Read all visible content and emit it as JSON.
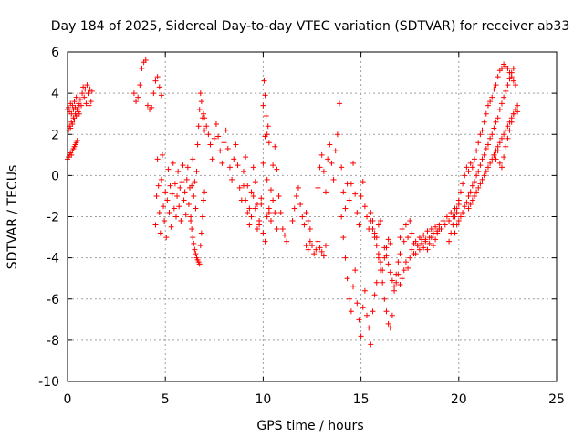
{
  "chart_data": {
    "type": "scatter",
    "title": "Day 184 of 2025, Sidereal Day-to-day VTEC variation (SDTVAR) for receiver ab33",
    "xlabel": "GPS time / hours",
    "ylabel": "SDTVAR / TECUs",
    "xlim": [
      0,
      25
    ],
    "ylim": [
      -10,
      6
    ],
    "xticks": [
      0,
      5,
      10,
      15,
      20,
      25
    ],
    "yticks": [
      -10,
      -8,
      -6,
      -4,
      -2,
      0,
      2,
      4,
      6
    ],
    "grid": true,
    "marker": "+",
    "color": "#ff0000",
    "series": [
      {
        "name": "SDTVAR",
        "x": [
          0.0,
          0.05,
          0.1,
          0.15,
          0.2,
          0.25,
          0.3,
          0.35,
          0.4,
          0.45,
          0.5,
          0.55,
          0.6,
          0.65,
          0.7,
          0.75,
          0.8,
          0.85,
          0.9,
          0.95,
          1.0,
          1.05,
          1.1,
          1.15,
          1.2,
          1.25,
          0.05,
          0.1,
          0.15,
          0.2,
          0.25,
          0.3,
          0.35,
          0.4,
          0.45,
          0.5,
          0.55,
          0.6,
          0.0,
          0.05,
          0.1,
          0.15,
          0.2,
          0.25,
          0.3,
          0.35,
          0.4,
          0.45,
          0.5,
          3.4,
          3.5,
          3.6,
          3.7,
          3.8,
          3.9,
          4.0,
          4.1,
          4.2,
          4.3,
          4.4,
          4.5,
          4.6,
          4.7,
          4.8,
          4.5,
          4.55,
          4.6,
          4.65,
          4.7,
          4.75,
          4.8,
          4.85,
          4.9,
          4.95,
          5.0,
          5.05,
          5.1,
          5.15,
          5.2,
          5.25,
          5.3,
          5.35,
          5.4,
          5.45,
          5.5,
          5.55,
          5.6,
          5.65,
          5.7,
          5.75,
          5.8,
          5.85,
          5.9,
          5.95,
          6.0,
          6.05,
          6.1,
          6.15,
          6.2,
          6.25,
          6.3,
          6.35,
          6.4,
          6.45,
          6.5,
          6.55,
          6.6,
          6.65,
          6.7,
          6.75,
          6.8,
          6.85,
          6.9,
          6.95,
          7.0,
          6.3,
          6.35,
          6.4,
          6.45,
          6.5,
          6.55,
          6.6,
          6.65,
          6.7,
          6.75,
          6.8,
          6.85,
          6.9,
          6.95,
          7.0,
          7.0,
          7.1,
          7.2,
          7.3,
          7.4,
          7.5,
          7.6,
          7.7,
          7.8,
          7.9,
          8.0,
          8.1,
          8.2,
          8.3,
          8.4,
          8.5,
          8.6,
          8.7,
          8.8,
          8.9,
          9.0,
          9.1,
          9.2,
          9.3,
          9.4,
          9.5,
          9.6,
          9.7,
          9.8,
          9.9,
          10.0,
          10.1,
          10.2,
          10.3,
          10.4,
          10.5,
          10.6,
          10.7,
          10.8,
          10.9,
          11.0,
          11.1,
          11.2,
          9.0,
          9.1,
          9.2,
          9.3,
          9.4,
          9.5,
          9.6,
          9.7,
          9.8,
          9.9,
          10.0,
          10.1,
          10.2,
          10.3,
          10.4,
          10.5,
          10.6,
          10.7,
          10.0,
          10.05,
          10.1,
          10.15,
          10.2,
          10.25,
          10.3,
          11.5,
          11.6,
          11.7,
          11.8,
          11.9,
          12.0,
          12.1,
          12.2,
          12.3,
          12.4,
          12.5,
          12.6,
          12.7,
          12.8,
          12.9,
          13.0,
          13.1,
          13.2,
          12.2,
          12.3,
          12.4,
          12.8,
          12.9,
          13.0,
          13.1,
          13.2,
          13.3,
          13.4,
          13.5,
          13.6,
          13.7,
          13.8,
          13.9,
          14.0,
          14.1,
          14.2,
          14.3,
          14.4,
          14.5,
          14.6,
          14.7,
          14.8,
          14.9,
          15.0,
          15.1,
          15.2,
          15.3,
          15.4,
          15.5,
          15.6,
          15.7,
          15.8,
          15.9,
          16.0,
          14.0,
          14.1,
          14.2,
          14.3,
          14.4,
          14.5,
          14.6,
          14.7,
          14.8,
          14.9,
          15.0,
          15.1,
          15.2,
          15.3,
          15.4,
          15.5,
          15.6,
          15.7,
          15.8,
          15.9,
          16.0,
          16.1,
          16.2,
          16.3,
          16.4,
          16.5,
          16.6,
          16.7,
          16.8,
          16.9,
          17.0,
          15.5,
          15.6,
          15.7,
          15.8,
          15.9,
          16.0,
          16.1,
          16.2,
          16.3,
          16.4,
          16.5,
          16.2,
          16.3,
          16.4,
          16.5,
          16.6,
          16.7,
          16.8,
          16.9,
          17.0,
          17.1,
          17.2,
          17.3,
          17.4,
          17.5,
          17.6,
          17.7,
          17.8,
          17.9,
          18.0,
          18.1,
          18.2,
          18.3,
          18.4,
          18.5,
          18.6,
          18.7,
          18.8,
          18.9,
          19.0,
          19.1,
          19.2,
          19.3,
          19.4,
          19.5,
          19.6,
          19.7,
          19.8,
          19.9,
          20.0,
          17.0,
          17.1,
          17.2,
          17.3,
          17.4,
          17.5,
          17.6,
          17.7,
          17.8,
          17.9,
          18.0,
          18.1,
          18.2,
          18.3,
          18.4,
          18.5,
          18.6,
          18.7,
          18.8,
          18.9,
          19.0,
          19.5,
          19.6,
          19.7,
          19.8,
          19.9,
          20.0,
          20.1,
          20.2,
          20.3,
          20.4,
          20.5,
          20.6,
          20.7,
          20.8,
          20.9,
          21.0,
          21.1,
          21.2,
          21.3,
          21.4,
          21.5,
          21.6,
          21.7,
          21.8,
          21.9,
          22.0,
          22.1,
          22.2,
          22.3,
          22.4,
          22.5,
          22.6,
          22.7,
          22.8,
          22.9,
          19.8,
          19.9,
          20.0,
          20.1,
          20.2,
          20.3,
          20.4,
          20.5,
          20.6,
          20.7,
          20.8,
          20.9,
          21.0,
          21.1,
          21.2,
          21.3,
          21.4,
          21.5,
          21.6,
          21.7,
          21.8,
          21.9,
          22.0,
          22.1,
          22.2,
          22.3,
          22.4,
          22.5,
          22.6,
          22.7,
          22.8,
          21.8,
          21.9,
          22.0,
          22.1,
          22.2,
          22.3,
          22.4,
          22.5,
          22.6,
          22.7,
          22.8,
          22.9,
          23.0,
          20.5,
          20.6,
          20.7,
          20.8,
          20.9,
          21.0,
          21.1,
          21.2,
          21.3,
          21.4,
          21.5,
          21.6,
          21.7,
          21.8,
          21.9,
          22.0,
          22.1,
          22.2,
          22.3,
          22.4,
          22.5,
          22.6,
          22.7,
          22.8,
          22.9,
          23.0
        ],
        "y": [
          3.2,
          3.3,
          3.1,
          3.5,
          3.0,
          3.4,
          3.2,
          3.6,
          3.3,
          3.8,
          3.2,
          3.5,
          3.0,
          3.7,
          3.4,
          4.0,
          4.3,
          3.8,
          4.2,
          3.5,
          4.4,
          4.0,
          3.4,
          4.2,
          3.6,
          4.1,
          2.2,
          2.4,
          2.3,
          2.6,
          2.5,
          2.8,
          2.7,
          3.0,
          2.9,
          3.2,
          3.1,
          3.4,
          0.8,
          0.9,
          1.0,
          1.1,
          1.0,
          1.2,
          1.3,
          1.4,
          1.5,
          1.6,
          1.7,
          4.0,
          3.6,
          3.8,
          4.4,
          5.2,
          5.5,
          5.6,
          3.4,
          3.2,
          3.3,
          4.0,
          4.6,
          4.8,
          4.3,
          3.9,
          -2.4,
          -1.0,
          0.8,
          -0.5,
          -1.8,
          -2.8,
          -0.2,
          1.0,
          -1.5,
          -2.2,
          -0.8,
          -3.0,
          -1.2,
          0.3,
          -1.8,
          -0.5,
          -2.5,
          -0.9,
          0.6,
          -1.6,
          -0.4,
          -2.0,
          -1.0,
          0.2,
          -1.5,
          -0.6,
          -2.2,
          -0.3,
          0.5,
          -1.2,
          -0.8,
          -1.9,
          -0.2,
          0.4,
          -1.4,
          -0.6,
          -2.0,
          -0.5,
          0.8,
          -1.0,
          -0.3,
          -1.6,
          0.2,
          1.5,
          2.4,
          3.2,
          4.0,
          3.6,
          2.8,
          3.0,
          2.2,
          -2.2,
          -2.6,
          -3.0,
          -3.3,
          -3.6,
          -3.8,
          -4.0,
          -4.1,
          -4.2,
          -4.3,
          -3.4,
          -2.8,
          -2.0,
          -1.2,
          -0.8,
          2.8,
          2.4,
          2.0,
          1.5,
          0.8,
          1.8,
          2.5,
          1.9,
          1.2,
          0.6,
          1.6,
          2.2,
          1.3,
          0.4,
          -0.2,
          0.8,
          1.5,
          0.5,
          -0.6,
          -1.2,
          0.2,
          0.9,
          -0.5,
          -1.6,
          -0.8,
          0.4,
          -0.3,
          -1.4,
          -2.4,
          -1.1,
          0.6,
          1.9,
          -0.2,
          -1.8,
          -0.7,
          0.5,
          1.4,
          0.3,
          -1.0,
          -1.8,
          -2.6,
          -2.9,
          -3.2,
          -0.5,
          -1.2,
          -1.8,
          -2.4,
          -2.0,
          -1.0,
          -1.6,
          -2.6,
          -2.2,
          -1.4,
          -2.8,
          -3.2,
          -2.0,
          -1.6,
          -2.2,
          -1.2,
          -1.8,
          -2.6,
          3.4,
          4.6,
          3.9,
          2.9,
          2.0,
          2.4,
          1.6,
          -2.2,
          -1.6,
          -1.0,
          -0.6,
          -1.4,
          -2.0,
          -2.4,
          -1.8,
          -2.2,
          -2.6,
          -3.4,
          -3.8,
          -3.6,
          -3.2,
          -3.5,
          -3.7,
          -3.9,
          -3.4,
          -3.4,
          -3.6,
          -3.2,
          -0.6,
          0.4,
          1.0,
          0.2,
          -0.8,
          0.8,
          1.5,
          0.6,
          -0.2,
          1.2,
          2.0,
          3.5,
          0.4,
          -0.8,
          -1.6,
          -0.4,
          -1.2,
          -0.4,
          0.6,
          -0.9,
          -1.8,
          -2.4,
          -1.0,
          -0.3,
          -1.5,
          -2.0,
          -2.6,
          -1.8,
          -2.2,
          -2.8,
          -3.0,
          -2.4,
          -2.2,
          -2.0,
          -3.0,
          -4.0,
          -5.0,
          -6.0,
          -6.6,
          -5.4,
          -4.6,
          -6.2,
          -7.0,
          -7.8,
          -6.4,
          -5.6,
          -6.8,
          -7.4,
          -8.2,
          -6.6,
          -5.8,
          -5.2,
          -4.0,
          -4.6,
          -5.2,
          -6.0,
          -6.6,
          -7.2,
          -7.4,
          -6.8,
          -5.6,
          -4.8,
          -4.2,
          -3.8,
          -2.2,
          -2.6,
          -3.0,
          -3.4,
          -3.8,
          -4.2,
          -4.6,
          -4.0,
          -3.5,
          -3.1,
          -3.3,
          -3.5,
          -3.9,
          -4.3,
          -4.7,
          -5.1,
          -5.4,
          -5.2,
          -4.8,
          -5.3,
          -5.0,
          -4.6,
          -4.2,
          -4.5,
          -4.0,
          -3.6,
          -3.8,
          -3.2,
          -3.4,
          -3.0,
          -3.3,
          -2.9,
          -3.1,
          -2.7,
          -3.0,
          -2.6,
          -2.8,
          -2.5,
          -2.7,
          -2.4,
          -2.6,
          -2.2,
          -2.4,
          -2.0,
          -2.2,
          -1.8,
          -2.0,
          -1.6,
          -1.8,
          -1.4,
          -3.0,
          -2.6,
          -3.2,
          -2.4,
          -3.0,
          -2.2,
          -2.8,
          -3.3,
          -3.8,
          -3.4,
          -3.6,
          -3.1,
          -3.5,
          -3.2,
          -3.6,
          -3.3,
          -3.0,
          -3.4,
          -3.1,
          -2.8,
          -2.6,
          -3.2,
          -2.8,
          -2.4,
          -2.0,
          -1.6,
          -1.2,
          -0.8,
          -0.4,
          0.0,
          0.4,
          0.2,
          0.6,
          0.4,
          0.8,
          1.2,
          1.6,
          2.0,
          2.2,
          2.6,
          3.0,
          3.4,
          3.6,
          3.8,
          4.2,
          4.4,
          4.8,
          5.1,
          5.2,
          5.4,
          5.3,
          5.2,
          5.0,
          4.8,
          4.6,
          4.4,
          -2.8,
          -2.4,
          -2.2,
          -2.0,
          -1.8,
          -1.5,
          -1.3,
          -1.0,
          -0.8,
          -0.5,
          -0.3,
          0.0,
          0.2,
          0.5,
          0.8,
          1.0,
          1.3,
          1.5,
          1.8,
          2.0,
          2.3,
          2.6,
          2.8,
          3.2,
          3.5,
          3.8,
          4.1,
          4.4,
          4.7,
          5.0,
          5.2,
          1.0,
          0.8,
          1.2,
          0.6,
          0.4,
          0.9,
          1.4,
          1.8,
          2.2,
          2.6,
          3.0,
          3.2,
          3.1,
          -1.6,
          -1.4,
          -1.2,
          -1.0,
          -0.8,
          -0.6,
          -0.4,
          -0.2,
          0.0,
          0.2,
          0.4,
          0.6,
          0.8,
          1.0,
          1.2,
          1.4,
          1.6,
          1.8,
          2.0,
          2.2,
          2.4,
          2.6,
          2.8,
          3.0,
          3.2,
          3.4
        ]
      }
    ]
  }
}
